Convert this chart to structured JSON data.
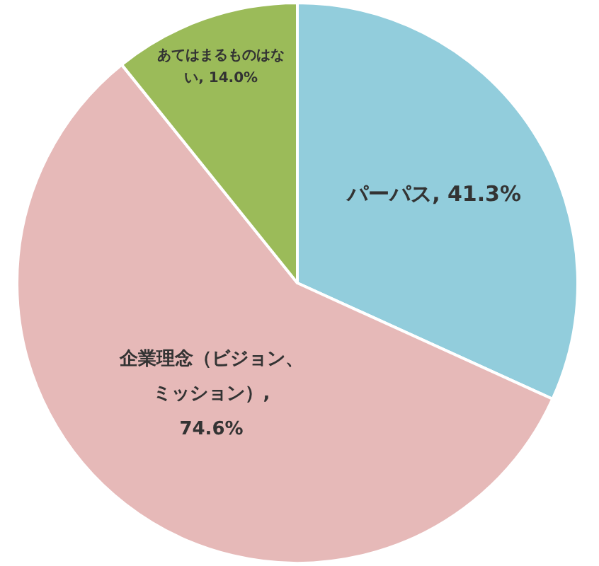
{
  "chart_data": {
    "type": "pie",
    "categories": [
      "パーパス",
      "企業理念（ビジョン、ミッション）",
      "あてはまるものはない"
    ],
    "values": [
      41.3,
      74.6,
      14.0
    ],
    "colors": [
      "#92cddc",
      "#e6b9b8",
      "#9bbb59"
    ],
    "value_labels": [
      ", 41.3%",
      ", 74.6%",
      ", 14.0%"
    ]
  }
}
